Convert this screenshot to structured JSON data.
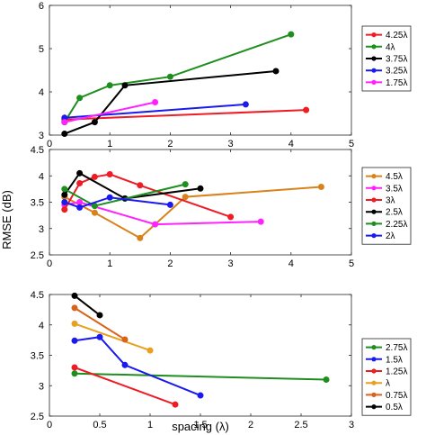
{
  "figure": {
    "ylabel": "RMSE (dB)",
    "xlabel": "spacing (λ)"
  },
  "chart_data": [
    {
      "type": "line",
      "xlim": [
        0,
        5
      ],
      "ylim": [
        3,
        6
      ],
      "xticks": [
        "0",
        "1",
        "2",
        "3",
        "4",
        "5"
      ],
      "yticks": [
        "3",
        "4",
        "5",
        "6"
      ],
      "legend_position": "outside-right",
      "series": [
        {
          "name": "4.25λ",
          "color": "#ee1c25",
          "points": [
            [
              0.25,
              3.36
            ],
            [
              4.25,
              3.58
            ]
          ]
        },
        {
          "name": "4λ",
          "color": "#1e8f1e",
          "points": [
            [
              0.25,
              3.3
            ],
            [
              0.5,
              3.86
            ],
            [
              1.0,
              4.15
            ],
            [
              2.0,
              4.35
            ],
            [
              4.0,
              5.33
            ]
          ]
        },
        {
          "name": "3.75λ",
          "color": "#000000",
          "points": [
            [
              0.25,
              3.03
            ],
            [
              0.75,
              3.3
            ],
            [
              1.25,
              4.15
            ],
            [
              3.75,
              4.48
            ]
          ]
        },
        {
          "name": "3.25λ",
          "color": "#1a1aee",
          "points": [
            [
              0.25,
              3.4
            ],
            [
              3.25,
              3.71
            ]
          ]
        },
        {
          "name": "1.75λ",
          "color": "#ff22ff",
          "points": [
            [
              0.25,
              3.3
            ],
            [
              1.75,
              3.76
            ]
          ]
        }
      ]
    },
    {
      "type": "line",
      "xlim": [
        0,
        5
      ],
      "ylim": [
        2.5,
        4.5
      ],
      "xticks": [
        "0",
        "1",
        "2",
        "3",
        "4",
        "5"
      ],
      "yticks": [
        "2.5",
        "3",
        "3.5",
        "4",
        "4.5"
      ],
      "legend_position": "outside-right",
      "series": [
        {
          "name": "4.5λ",
          "color": "#d9821b",
          "points": [
            [
              0.25,
              3.6
            ],
            [
              0.75,
              3.3
            ],
            [
              1.5,
              2.82
            ],
            [
              2.25,
              3.6
            ],
            [
              4.5,
              3.79
            ]
          ]
        },
        {
          "name": "3.5λ",
          "color": "#ff22ff",
          "points": [
            [
              0.25,
              3.45
            ],
            [
              0.5,
              3.5
            ],
            [
              1.75,
              3.08
            ],
            [
              3.5,
              3.13
            ]
          ]
        },
        {
          "name": "3λ",
          "color": "#ee1c25",
          "points": [
            [
              0.25,
              3.36
            ],
            [
              0.5,
              3.86
            ],
            [
              0.75,
              3.98
            ],
            [
              1.0,
              4.03
            ],
            [
              1.5,
              3.82
            ],
            [
              3.0,
              3.22
            ]
          ]
        },
        {
          "name": "2.5λ",
          "color": "#000000",
          "points": [
            [
              0.25,
              3.64
            ],
            [
              0.5,
              4.05
            ],
            [
              1.25,
              3.57
            ],
            [
              2.5,
              3.76
            ]
          ]
        },
        {
          "name": "2.25λ",
          "color": "#1e8f1e",
          "points": [
            [
              0.25,
              3.75
            ],
            [
              0.75,
              3.43
            ],
            [
              2.25,
              3.84
            ]
          ]
        },
        {
          "name": "2λ",
          "color": "#1a1aee",
          "points": [
            [
              0.25,
              3.5
            ],
            [
              0.5,
              3.4
            ],
            [
              1.0,
              3.59
            ],
            [
              2.0,
              3.45
            ]
          ]
        }
      ]
    },
    {
      "type": "line",
      "xlim": [
        0,
        3
      ],
      "ylim": [
        2.5,
        4.5
      ],
      "xticks": [
        "0",
        "0.5",
        "1",
        "1.5",
        "2",
        "2.5",
        "3"
      ],
      "yticks": [
        "2.5",
        "3",
        "3.5",
        "4",
        "4.5"
      ],
      "legend_position": "outside-right",
      "series": [
        {
          "name": "2.75λ",
          "color": "#1e8f1e",
          "points": [
            [
              0.25,
              3.2
            ],
            [
              2.75,
              3.1
            ]
          ]
        },
        {
          "name": "1.5λ",
          "color": "#1a1aee",
          "points": [
            [
              0.25,
              3.74
            ],
            [
              0.5,
              3.8
            ],
            [
              0.75,
              3.34
            ],
            [
              1.5,
              2.84
            ]
          ]
        },
        {
          "name": "1.25λ",
          "color": "#ee1c25",
          "points": [
            [
              0.25,
              3.3
            ],
            [
              1.25,
              2.69
            ]
          ]
        },
        {
          "name": "λ",
          "color": "#e8a020",
          "points": [
            [
              0.25,
              4.02
            ],
            [
              1.0,
              3.58
            ]
          ]
        },
        {
          "name": "0.75λ",
          "color": "#d9631b",
          "points": [
            [
              0.25,
              4.28
            ],
            [
              0.75,
              3.76
            ]
          ]
        },
        {
          "name": "0.5λ",
          "color": "#000000",
          "points": [
            [
              0.25,
              4.48
            ],
            [
              0.5,
              4.16
            ]
          ]
        }
      ]
    }
  ]
}
